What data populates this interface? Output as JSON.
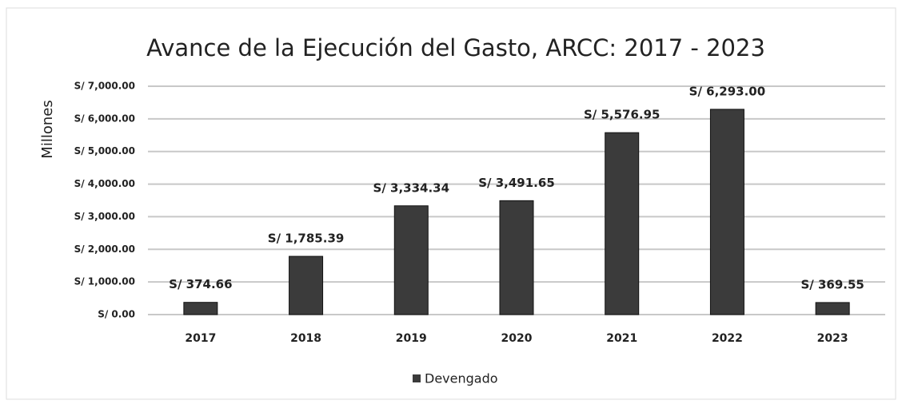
{
  "chart_data": {
    "type": "bar",
    "title": "Avance de la Ejecución del Gasto, ARCC: 2017 - 2023",
    "y_label": "Millones",
    "categories": [
      "2017",
      "2018",
      "2019",
      "2020",
      "2021",
      "2022",
      "2023"
    ],
    "series": [
      {
        "name": "Devengado",
        "color": "#3b3b3b",
        "values": [
          374.66,
          1785.39,
          3334.34,
          3491.65,
          5576.95,
          6293.0,
          369.55
        ],
        "value_labels": [
          "S/ 374.66",
          "S/ 1,785.39",
          "S/ 3,334.34",
          "S/ 3,491.65",
          "S/ 5,576.95",
          "S/ 6,293.00",
          "S/ 369.55"
        ]
      }
    ],
    "ylim": [
      0,
      7000
    ],
    "yticks": [
      {
        "value": 0,
        "label": "S/ 0.00"
      },
      {
        "value": 1000,
        "label": "S/ 1,000.00"
      },
      {
        "value": 2000,
        "label": "S/ 2,000.00"
      },
      {
        "value": 3000,
        "label": "S/ 3,000.00"
      },
      {
        "value": 4000,
        "label": "S/ 4,000.00"
      },
      {
        "value": 5000,
        "label": "S/ 5,000.00"
      },
      {
        "value": 6000,
        "label": "S/ 6,000.00"
      },
      {
        "value": 7000,
        "label": "S/ 7,000.00"
      }
    ],
    "grid": true,
    "legend": "bottom"
  }
}
